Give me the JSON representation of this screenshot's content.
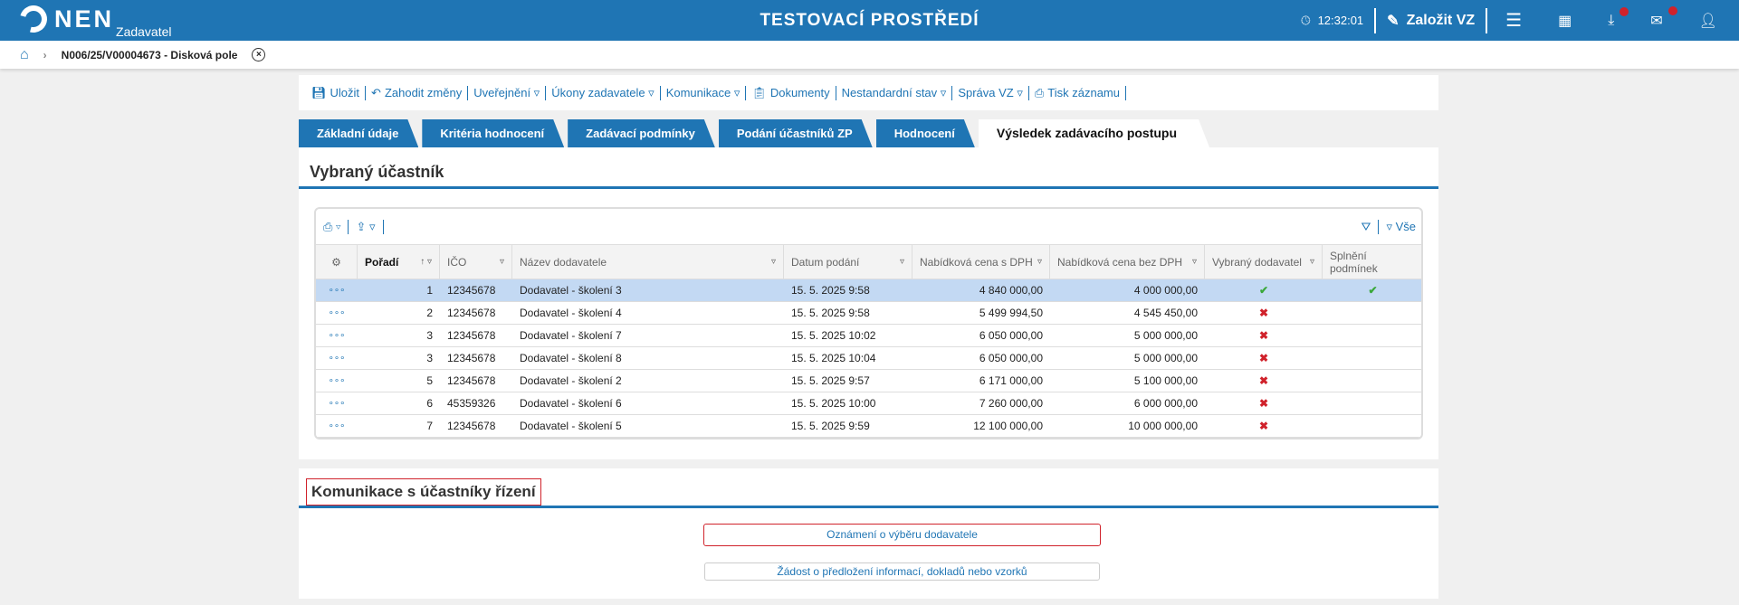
{
  "header": {
    "logo": "NEN",
    "logo_sub": "Zadavatel",
    "env": "TESTOVACÍ PROSTŘEDÍ",
    "time": "12:32:01",
    "create": "Založit VZ",
    "accent": "#1f75b4"
  },
  "breadcrumb": {
    "item": "N006/25/V00004673 - Disková pole"
  },
  "toolbar": [
    "Uložit",
    "Zahodit změny",
    "Uveřejnění ▿",
    "Úkony zadavatele ▿",
    "Komunikace ▿",
    "Dokumenty",
    "Nestandardní stav ▿",
    "Správa VZ ▿",
    "Tisk záznamu"
  ],
  "tabs": [
    "Základní údaje",
    "Kritéria hodnocení",
    "Zadávací podmínky",
    "Podání účastníků ZP",
    "Hodnocení",
    "Výsledek zadávacího postupu"
  ],
  "section1": {
    "title": "Vybraný účastník",
    "filter_all": "Vše",
    "columns": [
      "",
      "Pořadí",
      "IČO",
      "Název dodavatele",
      "Datum podání",
      "Nabídková cena s DPH",
      "Nabídková cena bez DPH",
      "Vybraný dodavatel",
      "Splnění podmínek"
    ],
    "rows": [
      [
        "1",
        "12345678",
        "Dodavatel - školení 3",
        "15. 5. 2025 9:58",
        "4 840 000,00",
        "4 000 000,00",
        "✔",
        "✔"
      ],
      [
        "2",
        "12345678",
        "Dodavatel - školení 4",
        "15. 5. 2025 9:58",
        "5 499 994,50",
        "4 545 450,00",
        "✖",
        ""
      ],
      [
        "3",
        "12345678",
        "Dodavatel - školení 7",
        "15. 5. 2025 10:02",
        "6 050 000,00",
        "5 000 000,00",
        "✖",
        ""
      ],
      [
        "3",
        "12345678",
        "Dodavatel - školení 8",
        "15. 5. 2025 10:04",
        "6 050 000,00",
        "5 000 000,00",
        "✖",
        ""
      ],
      [
        "5",
        "12345678",
        "Dodavatel - školení 2",
        "15. 5. 2025 9:57",
        "6 171 000,00",
        "5 100 000,00",
        "✖",
        ""
      ],
      [
        "6",
        "45359326",
        "Dodavatel - školení 6",
        "15. 5. 2025 10:00",
        "7 260 000,00",
        "6 000 000,00",
        "✖",
        ""
      ],
      [
        "7",
        "12345678",
        "Dodavatel - školení 5",
        "15. 5. 2025 9:59",
        "12 100 000,00",
        "10 000 000,00",
        "✖",
        ""
      ]
    ]
  },
  "section2": {
    "title": "Komunikace s účastníky řízení",
    "btn1": "Oznámení o výběru dodavatele",
    "btn2": "Žádost o předložení informací, dokladů nebo vzorků"
  }
}
